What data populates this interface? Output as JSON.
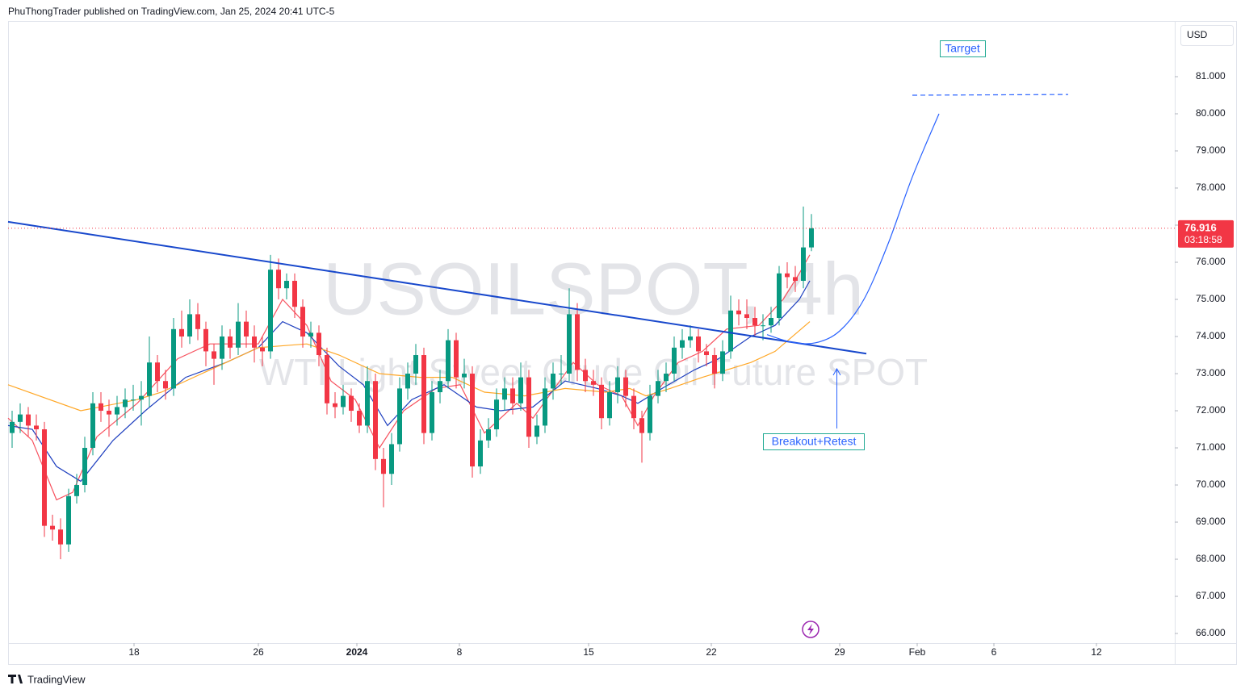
{
  "header": "PhuThongTrader published on TradingView.com, Jan 25, 2024 20:41 UTC-5",
  "footer": "TradingView",
  "chart_data": {
    "type": "candlestick",
    "title": "USOILSPOT, 4h",
    "subtitle": "WTI Light Sweet Crude Oil Future SPOT",
    "currency": "USD",
    "up_color": "#089981",
    "down_color": "#f23645",
    "xlim": [
      0,
      144.5
    ],
    "ylim": [
      65.74,
      82.5
    ],
    "xticks": [
      {
        "value": 15.6,
        "label": "18"
      },
      {
        "value": 31,
        "label": "26"
      },
      {
        "value": 43.2,
        "label": "2024"
      },
      {
        "value": 55.9,
        "label": "8"
      },
      {
        "value": 71.9,
        "label": "15"
      },
      {
        "value": 87.1,
        "label": "22"
      },
      {
        "value": 103,
        "label": "29"
      },
      {
        "value": 112.6,
        "label": "Feb"
      },
      {
        "value": 122.1,
        "label": "6"
      },
      {
        "value": 134.8,
        "label": "12"
      }
    ],
    "yticks": [
      {
        "value": 66,
        "label": "66.000"
      },
      {
        "value": 67,
        "label": "67.000"
      },
      {
        "value": 68,
        "label": "68.000"
      },
      {
        "value": 69,
        "label": "69.000"
      },
      {
        "value": 70,
        "label": "70.000"
      },
      {
        "value": 71,
        "label": "71.000"
      },
      {
        "value": 72,
        "label": "72.000"
      },
      {
        "value": 73,
        "label": "73.000"
      },
      {
        "value": 74,
        "label": "74.000"
      },
      {
        "value": 75,
        "label": "75.000"
      },
      {
        "value": 76,
        "label": "76.000"
      },
      {
        "value": 77,
        "label": "77.000"
      },
      {
        "value": 78,
        "label": "78.000"
      },
      {
        "value": 79,
        "label": "79.000"
      },
      {
        "value": 80,
        "label": "80.000"
      },
      {
        "value": 81,
        "label": "81.000"
      }
    ],
    "candles": [
      [
        71.4,
        72.0,
        71.0,
        71.7
      ],
      [
        71.7,
        72.2,
        71.4,
        71.9
      ],
      [
        71.9,
        72.1,
        71.3,
        71.6
      ],
      [
        71.6,
        71.9,
        71.2,
        71.5
      ],
      [
        71.5,
        71.7,
        68.6,
        68.9
      ],
      [
        68.9,
        69.2,
        68.5,
        68.8
      ],
      [
        68.8,
        69.1,
        68.0,
        68.4
      ],
      [
        68.4,
        69.9,
        68.2,
        69.7
      ],
      [
        69.7,
        70.3,
        69.5,
        70.0
      ],
      [
        70.0,
        71.3,
        69.8,
        71.0
      ],
      [
        71.0,
        72.5,
        70.8,
        72.2
      ],
      [
        72.2,
        72.5,
        71.7,
        72.0
      ],
      [
        72.0,
        72.3,
        71.3,
        71.9
      ],
      [
        71.9,
        72.4,
        71.6,
        72.1
      ],
      [
        72.1,
        72.6,
        71.8,
        72.3
      ],
      [
        72.3,
        72.7,
        72.0,
        72.3
      ],
      [
        72.3,
        72.8,
        71.6,
        72.4
      ],
      [
        72.4,
        74.0,
        72.1,
        73.3
      ],
      [
        73.3,
        73.5,
        72.5,
        72.8
      ],
      [
        72.8,
        73.1,
        72.3,
        72.6
      ],
      [
        72.6,
        74.5,
        72.4,
        74.2
      ],
      [
        74.2,
        74.7,
        73.7,
        74.0
      ],
      [
        74.0,
        75.0,
        73.8,
        74.6
      ],
      [
        74.6,
        74.9,
        73.9,
        74.2
      ],
      [
        74.2,
        74.4,
        73.2,
        73.6
      ],
      [
        73.6,
        73.8,
        72.7,
        73.4
      ],
      [
        73.4,
        74.3,
        73.1,
        74.0
      ],
      [
        74.0,
        74.2,
        73.4,
        73.7
      ],
      [
        73.7,
        74.9,
        73.5,
        74.4
      ],
      [
        74.4,
        74.7,
        73.7,
        74.0
      ],
      [
        74.0,
        74.3,
        73.3,
        73.7
      ],
      [
        73.7,
        74.0,
        73.2,
        73.6
      ],
      [
        73.6,
        76.2,
        73.4,
        75.8
      ],
      [
        75.8,
        76.1,
        75.0,
        75.3
      ],
      [
        75.3,
        75.7,
        75.0,
        75.5
      ],
      [
        75.5,
        75.7,
        74.5,
        74.8
      ],
      [
        74.8,
        75.0,
        73.7,
        74.0
      ],
      [
        74.0,
        74.4,
        73.7,
        74.1
      ],
      [
        74.1,
        74.3,
        73.2,
        73.5
      ],
      [
        73.5,
        73.7,
        71.9,
        72.2
      ],
      [
        72.2,
        72.5,
        71.8,
        72.1
      ],
      [
        72.1,
        72.7,
        71.9,
        72.4
      ],
      [
        72.4,
        72.6,
        71.7,
        72.0
      ],
      [
        72.0,
        72.2,
        71.4,
        71.6
      ],
      [
        71.6,
        73.2,
        71.4,
        72.8
      ],
      [
        72.8,
        73.0,
        70.4,
        70.7
      ],
      [
        70.7,
        71.0,
        69.4,
        70.3
      ],
      [
        70.3,
        71.4,
        70.0,
        71.1
      ],
      [
        71.1,
        72.9,
        70.9,
        72.6
      ],
      [
        72.6,
        73.3,
        72.3,
        73.0
      ],
      [
        73.0,
        73.8,
        72.7,
        73.5
      ],
      [
        73.5,
        73.7,
        71.1,
        71.4
      ],
      [
        71.4,
        72.8,
        71.2,
        72.5
      ],
      [
        72.5,
        73.1,
        72.2,
        72.8
      ],
      [
        72.8,
        74.2,
        72.6,
        73.9
      ],
      [
        73.9,
        74.1,
        72.6,
        72.9
      ],
      [
        72.9,
        73.4,
        72.6,
        73.0
      ],
      [
        73.0,
        73.2,
        70.2,
        70.5
      ],
      [
        70.5,
        71.5,
        70.3,
        71.2
      ],
      [
        71.2,
        71.8,
        71.0,
        71.5
      ],
      [
        71.5,
        72.6,
        71.3,
        72.3
      ],
      [
        72.3,
        72.9,
        72.0,
        72.6
      ],
      [
        72.6,
        72.9,
        71.9,
        72.2
      ],
      [
        72.2,
        73.3,
        72.0,
        72.9
      ],
      [
        72.9,
        73.1,
        71.0,
        71.3
      ],
      [
        71.3,
        71.9,
        71.1,
        71.6
      ],
      [
        71.6,
        72.9,
        71.4,
        72.6
      ],
      [
        72.6,
        73.3,
        72.3,
        73.0
      ],
      [
        73.0,
        73.5,
        72.7,
        73.0
      ],
      [
        73.0,
        75.3,
        72.8,
        74.6
      ],
      [
        74.6,
        74.9,
        72.8,
        73.1
      ],
      [
        73.1,
        73.4,
        72.5,
        72.8
      ],
      [
        72.8,
        73.1,
        72.4,
        72.7
      ],
      [
        72.7,
        72.9,
        71.5,
        71.8
      ],
      [
        71.8,
        72.8,
        71.6,
        72.5
      ],
      [
        72.5,
        73.2,
        72.2,
        72.9
      ],
      [
        72.9,
        73.1,
        72.1,
        72.4
      ],
      [
        72.4,
        72.6,
        71.5,
        71.8
      ],
      [
        71.8,
        72.0,
        70.6,
        71.4
      ],
      [
        71.4,
        72.7,
        71.2,
        72.4
      ],
      [
        72.4,
        73.1,
        72.2,
        72.8
      ],
      [
        72.8,
        73.3,
        72.5,
        73.0
      ],
      [
        73.0,
        74.0,
        72.8,
        73.7
      ],
      [
        73.7,
        74.2,
        73.4,
        73.9
      ],
      [
        73.9,
        74.3,
        73.7,
        74.0
      ],
      [
        74.0,
        74.2,
        73.3,
        73.6
      ],
      [
        73.6,
        73.8,
        73.2,
        73.5
      ],
      [
        73.5,
        73.7,
        72.6,
        73.0
      ],
      [
        73.0,
        73.9,
        72.8,
        73.6
      ],
      [
        73.6,
        75.1,
        73.4,
        74.7
      ],
      [
        74.7,
        75.0,
        74.3,
        74.6
      ],
      [
        74.6,
        75.0,
        74.2,
        74.5
      ],
      [
        74.5,
        74.8,
        74.0,
        74.3
      ],
      [
        74.3,
        74.6,
        73.9,
        74.3
      ],
      [
        74.3,
        74.8,
        74.1,
        74.5
      ],
      [
        74.5,
        75.9,
        74.3,
        75.7
      ],
      [
        75.7,
        76.0,
        75.3,
        75.6
      ],
      [
        75.6,
        75.9,
        75.2,
        75.5
      ],
      [
        75.5,
        77.5,
        75.3,
        76.4
      ],
      [
        76.4,
        77.3,
        76.3,
        76.916
      ]
    ],
    "series": [
      {
        "color": "#f7525f",
        "x": [
          0,
          3,
          6,
          8,
          11,
          16,
          21,
          25,
          29,
          31,
          34,
          37,
          40,
          43,
          46,
          49,
          53,
          56,
          59,
          63,
          65,
          68,
          70,
          73,
          76,
          78,
          80,
          83,
          86,
          89,
          93,
          96,
          98,
          99.3
        ],
        "values": [
          71.8,
          71.2,
          69.6,
          69.8,
          71.3,
          72.2,
          73.4,
          73.8,
          73.8,
          73.8,
          75.0,
          74.3,
          72.8,
          72.3,
          71.0,
          72.0,
          72.6,
          72.7,
          71.4,
          72.2,
          71.8,
          72.7,
          73.3,
          72.7,
          72.4,
          71.6,
          72.4,
          73.3,
          73.6,
          74.2,
          74.3,
          75.0,
          75.7,
          76.2
        ]
      },
      {
        "color": "#1e3fbf",
        "x": [
          0,
          3,
          6,
          9,
          13,
          17,
          22,
          27,
          31,
          34,
          37,
          41,
          44,
          47,
          50,
          54,
          58,
          61,
          65,
          69,
          73,
          76,
          78,
          81,
          85,
          88,
          92,
          95,
          98,
          99.3
        ],
        "values": [
          71.6,
          71.5,
          70.5,
          70.1,
          71.2,
          72.0,
          72.9,
          73.3,
          73.7,
          74.4,
          74.1,
          73.2,
          72.7,
          71.6,
          72.3,
          72.7,
          72.1,
          72.0,
          72.1,
          72.8,
          72.6,
          72.4,
          72.2,
          72.6,
          73.1,
          73.4,
          74.0,
          74.3,
          75.0,
          75.5
        ]
      },
      {
        "color": "#ffa726",
        "x": [
          0,
          9,
          16,
          19,
          24,
          31,
          37,
          41,
          46,
          51,
          55,
          59,
          64,
          69,
          74,
          77,
          79,
          82,
          86,
          89,
          92,
          95,
          99.3
        ],
        "values": [
          72.7,
          72.0,
          72.3,
          72.5,
          73.0,
          73.7,
          73.8,
          73.5,
          73.0,
          72.9,
          72.9,
          72.5,
          72.4,
          72.6,
          72.5,
          72.6,
          72.4,
          72.6,
          72.9,
          73.1,
          73.3,
          73.6,
          74.4
        ]
      }
    ],
    "last_price": 76.916,
    "countdown": "03:18:58",
    "trendline": {
      "color": "#1848cc",
      "x": [
        0,
        106.3
      ],
      "values": [
        77.09,
        73.54
      ]
    },
    "projection": {
      "color": "#2962ff",
      "x": [
        94,
        97,
        100,
        103,
        106,
        109,
        112,
        115.3
      ],
      "values": [
        74.05,
        73.85,
        73.83,
        74.15,
        75.0,
        76.5,
        78.3,
        80.0
      ]
    },
    "target_line": {
      "color": "#2962ff",
      "x": [
        112,
        131.3
      ],
      "values": [
        80.5,
        80.52
      ]
    },
    "annotations": [
      "Tarrget",
      "Breakout+Retest"
    ]
  }
}
